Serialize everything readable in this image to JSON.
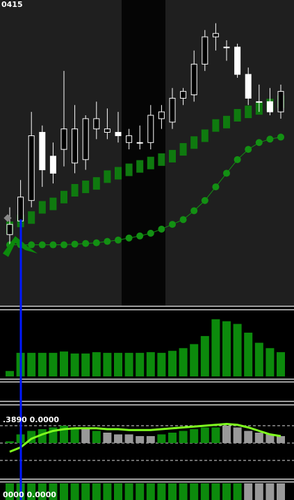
{
  "chart_data": [
    {
      "type": "candlestick",
      "title": "0415",
      "up_color": "#ffffff",
      "down_color": "#ffffff",
      "ylim": [
        0,
        440
      ],
      "open": [
        100,
        120,
        150,
        250,
        215,
        225,
        205,
        210,
        255,
        250,
        250,
        235,
        235,
        235,
        270,
        265,
        300,
        305,
        350,
        390,
        375,
        375,
        335,
        295,
        295,
        280
      ],
      "high": [
        140,
        180,
        280,
        260,
        235,
        340,
        290,
        275,
        295,
        285,
        280,
        255,
        260,
        290,
        290,
        315,
        315,
        370,
        400,
        410,
        385,
        380,
        345,
        320,
        315,
        320
      ],
      "low": [
        80,
        105,
        140,
        170,
        175,
        200,
        190,
        195,
        240,
        240,
        235,
        225,
        225,
        225,
        255,
        255,
        290,
        295,
        340,
        370,
        355,
        330,
        290,
        280,
        275,
        270
      ],
      "close": [
        115,
        155,
        245,
        195,
        190,
        255,
        255,
        270,
        270,
        255,
        245,
        245,
        235,
        275,
        280,
        300,
        310,
        350,
        390,
        395,
        375,
        335,
        300,
        295,
        280,
        310
      ],
      "series": [
        {
          "color": "#0f7a0f",
          "values": [
            110,
            120,
            125,
            140,
            145,
            155,
            165,
            170,
            175,
            185,
            190,
            195,
            200,
            205,
            210,
            215,
            225,
            235,
            245,
            260,
            265,
            275,
            280,
            285,
            290,
            295
          ]
        },
        {
          "color": "#139013",
          "values": [
            85,
            85,
            85,
            85,
            85,
            85,
            86,
            87,
            88,
            90,
            92,
            95,
            98,
            102,
            108,
            115,
            122,
            135,
            150,
            170,
            190,
            210,
            225,
            235,
            240,
            243
          ]
        }
      ]
    },
    {
      "type": "bar",
      "color": "#0c8a0c",
      "ylim": [
        0,
        95
      ],
      "values": [
        8,
        35,
        35,
        35,
        35,
        37,
        34,
        34,
        36,
        35,
        35,
        35,
        35,
        36,
        35,
        38,
        42,
        48,
        60,
        85,
        82,
        78,
        65,
        50,
        42,
        36
      ]
    },
    {
      "type": "oscillator",
      "title": ".3890 0.0000",
      "ylim": [
        -40,
        40
      ],
      "levels": [
        -20,
        0,
        20
      ],
      "line_color": "#7fff1f",
      "values": [
        2,
        10,
        14,
        16,
        18,
        20,
        18,
        16,
        14,
        12,
        10,
        10,
        8,
        8,
        10,
        12,
        14,
        16,
        18,
        18,
        20,
        18,
        14,
        12,
        10,
        8
      ],
      "colors": [
        "#0c8a0c",
        "#0c8a0c",
        "#0c8a0c",
        "#0c8a0c",
        "#0c8a0c",
        "#0c8a0c",
        "#0c8a0c",
        "#999999",
        "#0c8a0c",
        "#999999",
        "#999999",
        "#999999",
        "#999999",
        "#999999",
        "#0c8a0c",
        "#0c8a0c",
        "#0c8a0c",
        "#0c8a0c",
        "#0c8a0c",
        "#0c8a0c",
        "#999999",
        "#999999",
        "#999999",
        "#999999",
        "#999999",
        "#999999"
      ],
      "line": [
        -10,
        -5,
        5,
        10,
        14,
        16,
        17,
        17,
        17,
        16,
        16,
        15,
        15,
        15,
        16,
        17,
        18,
        19,
        20,
        21,
        22,
        21,
        18,
        14,
        10,
        8
      ]
    },
    {
      "type": "oscillator",
      "title": "0000 0.0000",
      "ylim": [
        0,
        1
      ],
      "values": [
        1,
        1,
        1,
        1,
        1,
        1,
        1,
        1,
        1,
        1,
        1,
        1,
        1,
        1,
        1,
        1,
        1,
        1,
        1,
        1,
        1,
        1,
        1,
        1,
        1,
        1
      ],
      "colors": [
        "#0c8a0c",
        "#0c8a0c",
        "#0c8a0c",
        "#0c8a0c",
        "#0c8a0c",
        "#0c8a0c",
        "#0c8a0c",
        "#0c8a0c",
        "#0c8a0c",
        "#0c8a0c",
        "#0c8a0c",
        "#0c8a0c",
        "#0c8a0c",
        "#0c8a0c",
        "#0c8a0c",
        "#0c8a0c",
        "#0c8a0c",
        "#0c8a0c",
        "#0c8a0c",
        "#0c8a0c",
        "#0c8a0c",
        "#0c8a0c",
        "#999999",
        "#999999",
        "#999999",
        "#999999"
      ]
    }
  ]
}
